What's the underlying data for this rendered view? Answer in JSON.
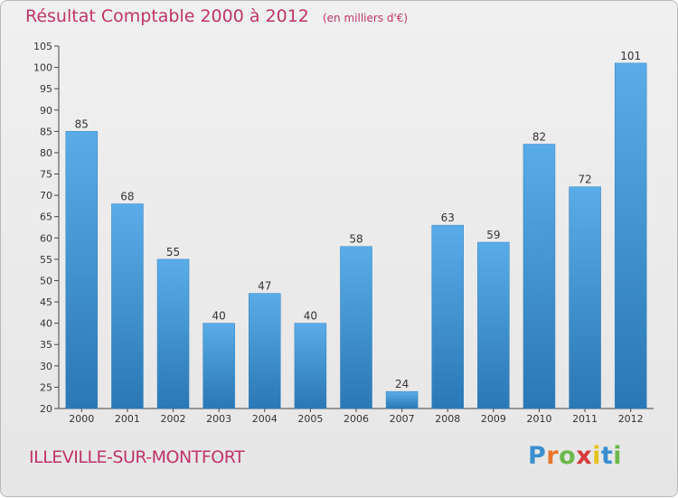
{
  "chart_data": {
    "type": "bar",
    "title": "Résultat Comptable 2000 à 2012",
    "subtitle": "(en milliers d'€)",
    "categories": [
      "2000",
      "2001",
      "2002",
      "2003",
      "2004",
      "2005",
      "2006",
      "2007",
      "2008",
      "2009",
      "2010",
      "2011",
      "2012"
    ],
    "values": [
      85,
      68,
      55,
      40,
      47,
      40,
      58,
      24,
      63,
      59,
      82,
      72,
      101
    ],
    "ylim": [
      20,
      105
    ],
    "yticks": [
      20,
      25,
      30,
      35,
      40,
      45,
      50,
      55,
      60,
      65,
      70,
      75,
      80,
      85,
      90,
      95,
      100,
      105
    ],
    "xlabel": "",
    "ylabel": "",
    "grid": false,
    "bar_color_top": "#5aace8",
    "bar_color_bottom": "#2a78b5"
  },
  "commune": "ILLEVILLE-SUR-MONTFORT",
  "logo": {
    "letters": [
      "P",
      "r",
      "o",
      "x",
      "i",
      "t",
      "i"
    ],
    "colors": [
      "#3a8fd0",
      "#e8762a",
      "#6cb84a",
      "#d63a3a",
      "#e8c21c",
      "#3a8fd0",
      "#6cb84a"
    ]
  },
  "colors": {
    "title": "#c0346a",
    "axis": "#333333"
  }
}
